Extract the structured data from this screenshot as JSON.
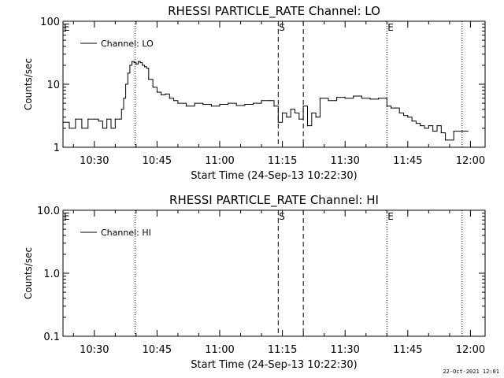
{
  "footer_timestamp": "22-Oct-2021 12:01",
  "chart_data": [
    {
      "type": "line",
      "title": "RHESSI PARTICLE_RATE Channel: LO",
      "xlabel": "Start Time (24-Sep-13 10:22:30)",
      "ylabel": "Counts/sec",
      "yscale": "log",
      "ylim": [
        1,
        100
      ],
      "yticks": [
        "1",
        "10",
        "100"
      ],
      "xlim": [
        "10:22:30",
        "12:03:30"
      ],
      "xticks": [
        "10:30",
        "10:45",
        "11:00",
        "11:15",
        "11:30",
        "11:45",
        "12:00"
      ],
      "legend": "top-left",
      "series": [
        {
          "name": "Channel: LO",
          "x": [
            "10:22:30",
            "10:24:00",
            "10:25:30",
            "10:27:00",
            "10:28:30",
            "10:30:00",
            "10:31:00",
            "10:32:00",
            "10:33:00",
            "10:34:00",
            "10:35:00",
            "10:36:00",
            "10:36:30",
            "10:37:00",
            "10:37:30",
            "10:38:00",
            "10:38:30",
            "10:39:00",
            "10:39:30",
            "10:40:00",
            "10:40:30",
            "10:41:00",
            "10:41:30",
            "10:42:00",
            "10:42:30",
            "10:43:00",
            "10:44:00",
            "10:45:00",
            "10:46:00",
            "10:47:00",
            "10:48:00",
            "10:49:00",
            "10:50:00",
            "10:52:00",
            "10:54:00",
            "10:56:00",
            "10:58:00",
            "11:00:00",
            "11:02:00",
            "11:04:00",
            "11:06:00",
            "11:08:00",
            "11:10:00",
            "11:12:00",
            "11:13:00",
            "11:14:00",
            "11:15:00",
            "11:16:00",
            "11:17:00",
            "11:18:00",
            "11:19:00",
            "11:20:00",
            "11:21:00",
            "11:22:00",
            "11:23:00",
            "11:24:00",
            "11:26:00",
            "11:28:00",
            "11:30:00",
            "11:32:00",
            "11:34:00",
            "11:36:00",
            "11:38:00",
            "11:40:00",
            "11:41:00",
            "11:42:00",
            "11:43:00",
            "11:44:00",
            "11:45:00",
            "11:46:00",
            "11:47:00",
            "11:48:00",
            "11:49:00",
            "11:50:00",
            "11:51:00",
            "11:52:00",
            "11:53:00",
            "11:54:00",
            "11:56:00",
            "11:58:00"
          ],
          "values": [
            2.5,
            2.0,
            2.8,
            2.0,
            2.8,
            2.8,
            2.6,
            2.0,
            2.8,
            2.0,
            2.8,
            2.8,
            4.0,
            6.0,
            10.0,
            15.0,
            20.0,
            23.0,
            22.0,
            21.0,
            23.0,
            22.0,
            20.0,
            19.0,
            18.0,
            12.0,
            9.0,
            7.5,
            6.8,
            7.0,
            6.0,
            5.5,
            5.0,
            4.5,
            5.0,
            4.8,
            4.5,
            4.8,
            5.0,
            4.6,
            4.8,
            5.0,
            5.5,
            5.5,
            4.5,
            2.5,
            3.5,
            3.0,
            4.0,
            3.5,
            2.8,
            4.5,
            2.2,
            3.5,
            3.0,
            6.0,
            5.5,
            6.2,
            6.0,
            6.5,
            6.0,
            5.8,
            6.0,
            4.5,
            4.2,
            4.2,
            3.5,
            3.2,
            3.0,
            2.6,
            2.4,
            2.2,
            2.0,
            2.2,
            1.8,
            2.2,
            1.7,
            1.3,
            1.8,
            1.8
          ]
        }
      ],
      "markers": [
        {
          "label": "E",
          "time": "10:22:30",
          "style": "dotted"
        },
        {
          "label": "",
          "time": "10:39:45",
          "style": "dotted"
        },
        {
          "label": "S",
          "time": "11:14:00",
          "style": "dashed"
        },
        {
          "label": "",
          "time": "11:20:00",
          "style": "dashed"
        },
        {
          "label": "E",
          "time": "11:40:00",
          "style": "dotted"
        },
        {
          "label": "",
          "time": "11:58:00",
          "style": "dotted"
        }
      ]
    },
    {
      "type": "line",
      "title": "RHESSI PARTICLE_RATE Channel: HI",
      "xlabel": "Start Time (24-Sep-13 10:22:30)",
      "ylabel": "Counts/sec",
      "yscale": "log",
      "ylim": [
        0.1,
        10
      ],
      "yticks": [
        "0.1",
        "1.0",
        "10.0"
      ],
      "xlim": [
        "10:22:30",
        "12:03:30"
      ],
      "xticks": [
        "10:30",
        "10:45",
        "11:00",
        "11:15",
        "11:30",
        "11:45",
        "12:00"
      ],
      "legend": "top-left",
      "series": [
        {
          "name": "Channel: HI",
          "x": [],
          "values": []
        }
      ],
      "markers": [
        {
          "label": "E",
          "time": "10:22:30",
          "style": "dotted"
        },
        {
          "label": "",
          "time": "10:39:45",
          "style": "dotted"
        },
        {
          "label": "S",
          "time": "11:14:00",
          "style": "dashed"
        },
        {
          "label": "",
          "time": "11:20:00",
          "style": "dashed"
        },
        {
          "label": "E",
          "time": "11:40:00",
          "style": "dotted"
        },
        {
          "label": "",
          "time": "11:58:00",
          "style": "dotted"
        }
      ]
    }
  ]
}
